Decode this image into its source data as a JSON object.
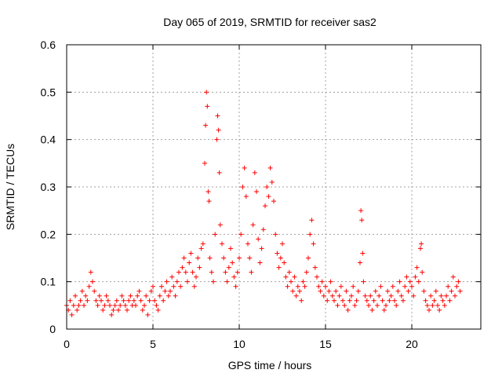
{
  "chart_data": {
    "type": "scatter",
    "title": "Day 065 of 2019, SRMTID for receiver sas2",
    "xlabel": "GPS time / hours",
    "ylabel": "SRMTID / TECUs",
    "xlim": [
      0,
      24
    ],
    "ylim": [
      0,
      0.6
    ],
    "xticks": [
      0,
      5,
      10,
      15,
      20
    ],
    "yticks": [
      0,
      0.1,
      0.2,
      0.3,
      0.4,
      0.5,
      0.6
    ],
    "xtick_labels": [
      "0",
      "5",
      "10",
      "15",
      "20"
    ],
    "ytick_labels": [
      "0",
      "0.1",
      "0.2",
      "0.3",
      "0.4",
      "0.5",
      "0.6"
    ],
    "grid": true,
    "marker": "+",
    "color": "#ff0000",
    "series": [
      {
        "name": "sas2",
        "points": [
          [
            0.0,
            0.05
          ],
          [
            0.1,
            0.04
          ],
          [
            0.2,
            0.06
          ],
          [
            0.3,
            0.03
          ],
          [
            0.4,
            0.05
          ],
          [
            0.5,
            0.07
          ],
          [
            0.6,
            0.04
          ],
          [
            0.7,
            0.05
          ],
          [
            0.8,
            0.06
          ],
          [
            0.9,
            0.08
          ],
          [
            1.0,
            0.05
          ],
          [
            1.1,
            0.07
          ],
          [
            1.2,
            0.06
          ],
          [
            1.3,
            0.09
          ],
          [
            1.4,
            0.12
          ],
          [
            1.5,
            0.1
          ],
          [
            1.6,
            0.08
          ],
          [
            1.7,
            0.06
          ],
          [
            1.8,
            0.05
          ],
          [
            1.9,
            0.07
          ],
          [
            2.0,
            0.06
          ],
          [
            2.1,
            0.04
          ],
          [
            2.2,
            0.05
          ],
          [
            2.3,
            0.07
          ],
          [
            2.4,
            0.06
          ],
          [
            2.5,
            0.05
          ],
          [
            2.6,
            0.03
          ],
          [
            2.7,
            0.04
          ],
          [
            2.8,
            0.05
          ],
          [
            2.9,
            0.06
          ],
          [
            3.0,
            0.04
          ],
          [
            3.1,
            0.05
          ],
          [
            3.2,
            0.07
          ],
          [
            3.3,
            0.06
          ],
          [
            3.4,
            0.05
          ],
          [
            3.5,
            0.04
          ],
          [
            3.6,
            0.06
          ],
          [
            3.7,
            0.07
          ],
          [
            3.8,
            0.05
          ],
          [
            3.9,
            0.06
          ],
          [
            4.0,
            0.05
          ],
          [
            4.1,
            0.07
          ],
          [
            4.2,
            0.08
          ],
          [
            4.3,
            0.06
          ],
          [
            4.4,
            0.04
          ],
          [
            4.5,
            0.05
          ],
          [
            4.6,
            0.07
          ],
          [
            4.7,
            0.03
          ],
          [
            4.8,
            0.06
          ],
          [
            4.9,
            0.08
          ],
          [
            5.0,
            0.09
          ],
          [
            5.1,
            0.06
          ],
          [
            5.2,
            0.05
          ],
          [
            5.3,
            0.04
          ],
          [
            5.4,
            0.07
          ],
          [
            5.5,
            0.09
          ],
          [
            5.6,
            0.06
          ],
          [
            5.7,
            0.08
          ],
          [
            5.8,
            0.1
          ],
          [
            5.9,
            0.07
          ],
          [
            6.0,
            0.08
          ],
          [
            6.1,
            0.11
          ],
          [
            6.2,
            0.09
          ],
          [
            6.3,
            0.07
          ],
          [
            6.4,
            0.1
          ],
          [
            6.5,
            0.12
          ],
          [
            6.6,
            0.09
          ],
          [
            6.7,
            0.13
          ],
          [
            6.8,
            0.15
          ],
          [
            6.9,
            0.12
          ],
          [
            7.0,
            0.1
          ],
          [
            7.1,
            0.14
          ],
          [
            7.2,
            0.16
          ],
          [
            7.3,
            0.12
          ],
          [
            7.4,
            0.09
          ],
          [
            7.5,
            0.11
          ],
          [
            7.6,
            0.15
          ],
          [
            7.7,
            0.13
          ],
          [
            7.8,
            0.17
          ],
          [
            7.9,
            0.18
          ],
          [
            8.0,
            0.35
          ],
          [
            8.05,
            0.43
          ],
          [
            8.1,
            0.5
          ],
          [
            8.15,
            0.47
          ],
          [
            8.2,
            0.29
          ],
          [
            8.25,
            0.27
          ],
          [
            8.3,
            0.15
          ],
          [
            8.4,
            0.12
          ],
          [
            8.5,
            0.1
          ],
          [
            8.6,
            0.2
          ],
          [
            8.7,
            0.4
          ],
          [
            8.75,
            0.45
          ],
          [
            8.8,
            0.42
          ],
          [
            8.85,
            0.33
          ],
          [
            8.9,
            0.22
          ],
          [
            9.0,
            0.18
          ],
          [
            9.1,
            0.15
          ],
          [
            9.2,
            0.12
          ],
          [
            9.3,
            0.1
          ],
          [
            9.4,
            0.13
          ],
          [
            9.5,
            0.17
          ],
          [
            9.6,
            0.14
          ],
          [
            9.7,
            0.11
          ],
          [
            9.8,
            0.09
          ],
          [
            9.9,
            0.12
          ],
          [
            10.0,
            0.15
          ],
          [
            10.1,
            0.2
          ],
          [
            10.2,
            0.3
          ],
          [
            10.3,
            0.34
          ],
          [
            10.4,
            0.28
          ],
          [
            10.5,
            0.18
          ],
          [
            10.6,
            0.15
          ],
          [
            10.7,
            0.12
          ],
          [
            10.8,
            0.22
          ],
          [
            10.9,
            0.33
          ],
          [
            11.0,
            0.29
          ],
          [
            11.1,
            0.19
          ],
          [
            11.2,
            0.14
          ],
          [
            11.3,
            0.17
          ],
          [
            11.4,
            0.21
          ],
          [
            11.5,
            0.26
          ],
          [
            11.6,
            0.3
          ],
          [
            11.7,
            0.28
          ],
          [
            11.8,
            0.34
          ],
          [
            11.9,
            0.31
          ],
          [
            12.0,
            0.27
          ],
          [
            12.1,
            0.2
          ],
          [
            12.2,
            0.16
          ],
          [
            12.3,
            0.13
          ],
          [
            12.4,
            0.15
          ],
          [
            12.5,
            0.18
          ],
          [
            12.6,
            0.14
          ],
          [
            12.7,
            0.11
          ],
          [
            12.8,
            0.09
          ],
          [
            12.9,
            0.12
          ],
          [
            13.0,
            0.1
          ],
          [
            13.1,
            0.08
          ],
          [
            13.2,
            0.11
          ],
          [
            13.3,
            0.07
          ],
          [
            13.4,
            0.09
          ],
          [
            13.5,
            0.08
          ],
          [
            13.6,
            0.06
          ],
          [
            13.7,
            0.1
          ],
          [
            13.8,
            0.09
          ],
          [
            13.9,
            0.12
          ],
          [
            14.0,
            0.15
          ],
          [
            14.1,
            0.2
          ],
          [
            14.2,
            0.23
          ],
          [
            14.3,
            0.18
          ],
          [
            14.4,
            0.13
          ],
          [
            14.5,
            0.11
          ],
          [
            14.6,
            0.09
          ],
          [
            14.7,
            0.08
          ],
          [
            14.8,
            0.1
          ],
          [
            14.9,
            0.07
          ],
          [
            15.0,
            0.09
          ],
          [
            15.1,
            0.06
          ],
          [
            15.2,
            0.08
          ],
          [
            15.3,
            0.1
          ],
          [
            15.4,
            0.07
          ],
          [
            15.5,
            0.06
          ],
          [
            15.6,
            0.08
          ],
          [
            15.7,
            0.05
          ],
          [
            15.8,
            0.07
          ],
          [
            15.9,
            0.09
          ],
          [
            16.0,
            0.06
          ],
          [
            16.1,
            0.05
          ],
          [
            16.2,
            0.08
          ],
          [
            16.3,
            0.04
          ],
          [
            16.4,
            0.06
          ],
          [
            16.5,
            0.07
          ],
          [
            16.6,
            0.09
          ],
          [
            16.7,
            0.05
          ],
          [
            16.8,
            0.06
          ],
          [
            16.9,
            0.08
          ],
          [
            17.0,
            0.14
          ],
          [
            17.05,
            0.25
          ],
          [
            17.1,
            0.23
          ],
          [
            17.15,
            0.16
          ],
          [
            17.2,
            0.1
          ],
          [
            17.3,
            0.07
          ],
          [
            17.4,
            0.06
          ],
          [
            17.5,
            0.05
          ],
          [
            17.6,
            0.07
          ],
          [
            17.7,
            0.04
          ],
          [
            17.8,
            0.06
          ],
          [
            17.9,
            0.08
          ],
          [
            18.0,
            0.05
          ],
          [
            18.1,
            0.07
          ],
          [
            18.2,
            0.09
          ],
          [
            18.3,
            0.06
          ],
          [
            18.4,
            0.04
          ],
          [
            18.5,
            0.05
          ],
          [
            18.6,
            0.08
          ],
          [
            18.7,
            0.06
          ],
          [
            18.8,
            0.07
          ],
          [
            18.9,
            0.09
          ],
          [
            19.0,
            0.06
          ],
          [
            19.1,
            0.05
          ],
          [
            19.2,
            0.08
          ],
          [
            19.3,
            0.1
          ],
          [
            19.4,
            0.07
          ],
          [
            19.5,
            0.06
          ],
          [
            19.6,
            0.09
          ],
          [
            19.7,
            0.11
          ],
          [
            19.8,
            0.08
          ],
          [
            19.9,
            0.1
          ],
          [
            20.0,
            0.09
          ],
          [
            20.1,
            0.07
          ],
          [
            20.2,
            0.11
          ],
          [
            20.3,
            0.13
          ],
          [
            20.4,
            0.1
          ],
          [
            20.5,
            0.17
          ],
          [
            20.55,
            0.18
          ],
          [
            20.6,
            0.12
          ],
          [
            20.7,
            0.08
          ],
          [
            20.8,
            0.06
          ],
          [
            20.9,
            0.05
          ],
          [
            21.0,
            0.04
          ],
          [
            21.1,
            0.07
          ],
          [
            21.2,
            0.05
          ],
          [
            21.3,
            0.06
          ],
          [
            21.4,
            0.08
          ],
          [
            21.5,
            0.05
          ],
          [
            21.6,
            0.04
          ],
          [
            21.7,
            0.07
          ],
          [
            21.8,
            0.06
          ],
          [
            21.9,
            0.05
          ],
          [
            22.0,
            0.07
          ],
          [
            22.1,
            0.09
          ],
          [
            22.2,
            0.06
          ],
          [
            22.3,
            0.08
          ],
          [
            22.4,
            0.11
          ],
          [
            22.5,
            0.07
          ],
          [
            22.6,
            0.09
          ],
          [
            22.7,
            0.1
          ],
          [
            22.8,
            0.08
          ]
        ]
      }
    ]
  }
}
